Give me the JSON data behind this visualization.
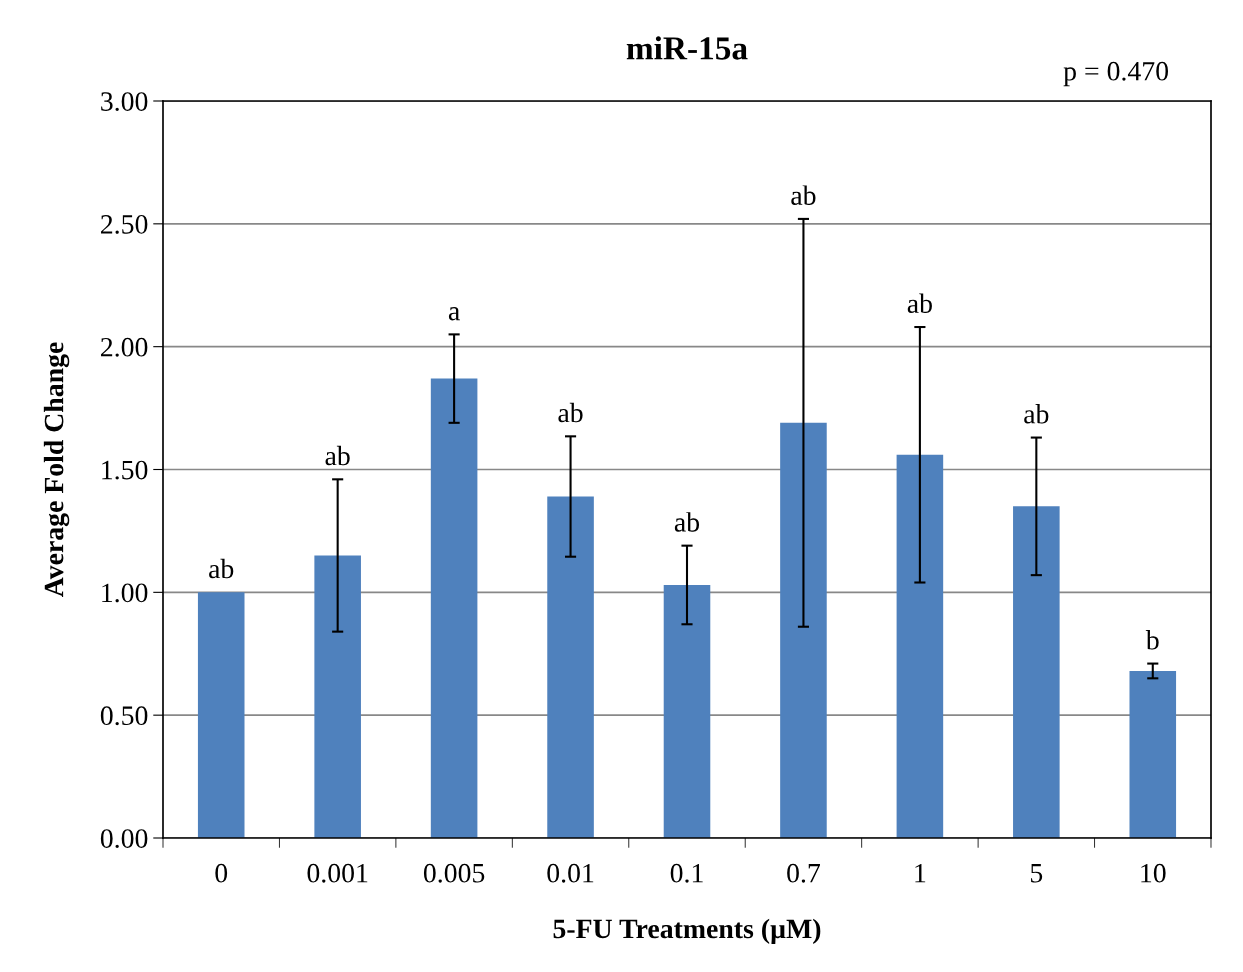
{
  "chart_data": {
    "type": "bar",
    "title": "miR-15a",
    "xlabel": "5-FU Treatments (µM)",
    "ylabel": "Average Fold Change",
    "categories": [
      "0",
      "0.001",
      "0.005",
      "0.01",
      "0.1",
      "0.7",
      "1",
      "5",
      "10"
    ],
    "values": [
      1.0,
      1.15,
      1.87,
      1.39,
      1.03,
      1.69,
      1.56,
      1.35,
      0.68
    ],
    "errors": [
      null,
      0.31,
      0.18,
      0.245,
      0.16,
      0.83,
      0.52,
      0.28,
      0.03
    ],
    "color": "#4f81bd",
    "ylim": [
      0,
      3
    ],
    "yticks": [
      {
        "value": 0,
        "label": "0.00"
      },
      {
        "value": 0.5,
        "label": "0.50"
      },
      {
        "value": 1,
        "label": "1.00"
      },
      {
        "value": 1.5,
        "label": "1.50"
      },
      {
        "value": 2,
        "label": "2.00"
      },
      {
        "value": 2.5,
        "label": "2.50"
      },
      {
        "value": 3,
        "label": "3.00"
      }
    ],
    "grid": "y",
    "annotations": [
      {
        "text": "ab",
        "x": "0",
        "y": 1.0
      },
      {
        "text": "ab",
        "x": "0.001",
        "y": 1.46
      },
      {
        "text": "a",
        "x": "0.005",
        "y": 2.05
      },
      {
        "text": "ab",
        "x": "0.01",
        "y": 1.635
      },
      {
        "text": "ab",
        "x": "0.1",
        "y": 1.19
      },
      {
        "text": "ab",
        "x": "0.7",
        "y": 2.52
      },
      {
        "text": "ab",
        "x": "1",
        "y": 2.08
      },
      {
        "text": "ab",
        "x": "5",
        "y": 1.63
      },
      {
        "text": "b",
        "x": "10",
        "y": 0.71
      },
      "p = 0.470"
    ]
  }
}
